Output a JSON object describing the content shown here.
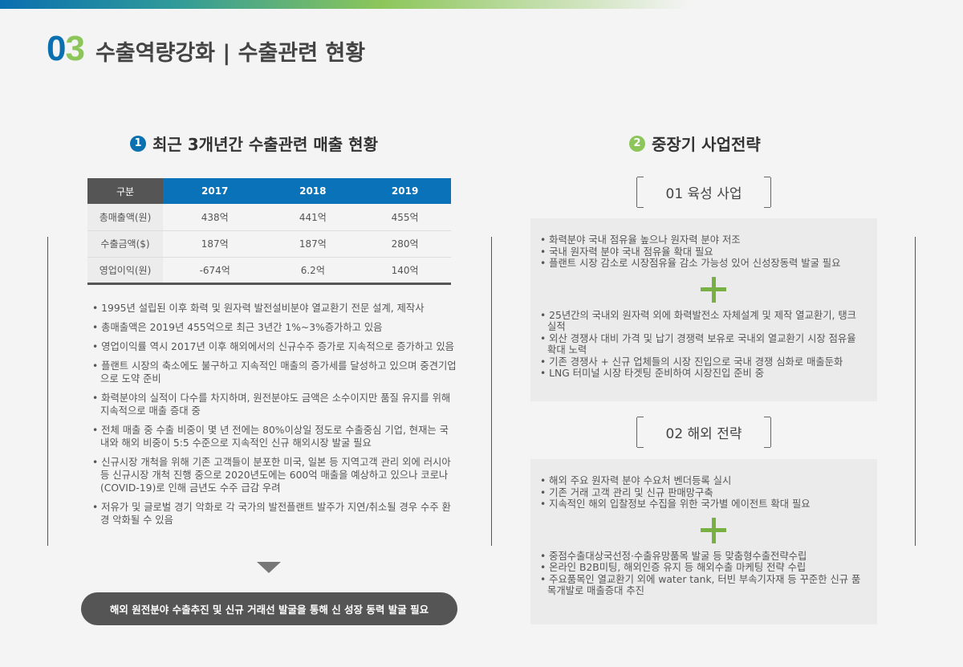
{
  "header": {
    "num_a": "0",
    "num_b": "3",
    "title": "수출역량강화 | 수출관련 현황"
  },
  "section1": {
    "badge": "1",
    "title": "최근 3개년간 수출관련 매출 현황",
    "table": {
      "headers": [
        "구분",
        "2017",
        "2018",
        "2019"
      ],
      "rows": [
        [
          "총매출액(원)",
          "438억",
          "441억",
          "455억"
        ],
        [
          "수출금액($)",
          "187억",
          "187억",
          "280억"
        ],
        [
          "영업이익(원)",
          "-674억",
          "6.2억",
          "140억"
        ]
      ]
    },
    "bullets": [
      "1995년 설립된 이후 화력 및 원자력 발전설비분야 열교환기 전문 설계, 제작사",
      "총매출액은 2019년 455억으로 최근 3년간 1%~3%증가하고 있음",
      "영업이익률 역시 2017년 이후 해외에서의 신규수주 증가로 지속적으로 증가하고 있음",
      "플랜트 시장의 축소에도 불구하고 지속적인 매출의 증가세를 달성하고 있으며 중견기업 으로 도약 준비",
      "화력분야의 실적이 다수를 차지하며, 원전분야도 금액은 소수이지만 품질 유지를 위해 지속적으로 매출 증대 중",
      "전체 매출 중 수출 비중이 몇 년 전에는 80%이상일 정도로 수출중심 기업, 현재는 국내와 해외 비중이 5:5 수준으로 지속적인 신규 해외시장 발굴 필요",
      "신규시장 개척을 위해 기존 고객들이 분포한 미국, 일본 등 지역고객 관리 외에 러시아 등 신규시장 개척 진행 중으로 2020년도에는 600억 매출을 예상하고 있으나 코로나(COVID-19)로 인해 금년도 수주 급감 우려",
      "저유가 및 글로벌 경기 악화로 각 국가의 발전플랜트 발주가 지연/취소될 경우 수주 환경 악화될 수 있음"
    ],
    "conclusion": "해외 원전분야 수출추진 및 신규 거래선 발굴을 통해 신 성장 동력 발굴 필요"
  },
  "section2": {
    "badge": "2",
    "title": "중장기 사업전략",
    "blocks": [
      {
        "label": "01 육성 사업",
        "top": [
          "화력분야 국내 점유율 높으나 원자력 분야 저조",
          "국내 원자력 분야 국내 점유율 확대 필요",
          "플랜트 시장 감소로 시장점유율 감소 가능성 있어 신성장동력 발굴 필요"
        ],
        "bottom": [
          "25년간의 국내외 원자력 외에 화력발전소 자체설계 및 제작 열교환기, 탱크 실적",
          "외산 경쟁사 대비 가격 및 납기 경쟁력 보유로 국내외 열교환기 시장 점유율 확대 노력",
          "기존 경쟁사 + 신규 업체들의 시장 진입으로 국내 경쟁 심화로 매출둔화",
          "LNG 터미널 시장 타겟팅 준비하여 시장진입 준비 중"
        ]
      },
      {
        "label": "02 해외 전략",
        "top": [
          "해외 주요 원자력 분야 수요처 벤더등록 실시",
          "기존 거래 고객 관리 및 신규 판매망구축",
          "지속적인 해외 입찰정보 수집을 위한 국가별 에이전트 확대 필요"
        ],
        "bottom": [
          "중점수출대상국선정·수출유망품목 발굴 등 맞춤형수출전략수립",
          "온라인 B2B미팅, 해외인증 유지 등 해외수출 마케팅 전략 수립",
          "주요품목인 열교환기 외에 water tank, 터빈 부속기자재 등 꾸준한 신규 품목개발로 매출증대 추진"
        ]
      }
    ]
  },
  "colors": {
    "blue": "#0a70b0",
    "green": "#8cc65a",
    "dark": "#555555"
  }
}
